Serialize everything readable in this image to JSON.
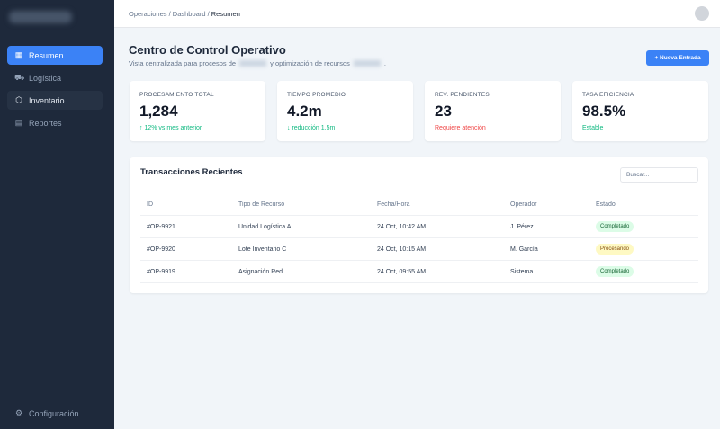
{
  "sidebar": {
    "items": [
      {
        "label": "Resumen",
        "icon": "grid-icon",
        "active": true
      },
      {
        "label": "Logística",
        "icon": "truck-icon"
      },
      {
        "label": "Inventario",
        "icon": "box-icon"
      },
      {
        "label": "Reportes",
        "icon": "file-icon"
      }
    ],
    "settings": {
      "label": "Configuración",
      "icon": "gear-icon"
    }
  },
  "header": {
    "breadcrumb": [
      "Operaciones",
      "Dashboard",
      "Resumen"
    ],
    "sep": " / "
  },
  "page": {
    "title": "Centro de Control Operativo",
    "subtitle_a": "Vista centralizada para procesos de",
    "subtitle_b": "y optimización de recursos",
    "subtitle_c": ".",
    "new_button": "+ Nueva Entrada"
  },
  "cards": [
    {
      "label": "PROCESAMIENTO TOTAL",
      "value": "1,284",
      "note": "↑ 12% vs mes anterior",
      "note_color": "#10b981"
    },
    {
      "label": "TIEMPO PROMEDIO",
      "value": "4.2m",
      "note": "↓ reducción 1.5m",
      "note_color": "#10b981"
    },
    {
      "label": "REV. PENDIENTES",
      "value": "23",
      "note": "Requiere atención",
      "note_color": "#ef4444"
    },
    {
      "label": "TASA EFICIENCIA",
      "value": "98.5%",
      "note": "Estable",
      "note_color": "#10b981"
    }
  ],
  "table": {
    "title": "Transacciones Recientes",
    "search_placeholder": "Buscar...",
    "columns": [
      "ID",
      "Tipo de Recurso",
      "Fecha/Hora",
      "Operador",
      "Estado"
    ],
    "rows": [
      [
        "#OP-9921",
        "Unidad Logística A",
        "24 Oct, 10:42 AM",
        "J. Pérez",
        "Completado"
      ],
      [
        "#OP-9920",
        "Lote Inventario C",
        "24 Oct, 10:15 AM",
        "M. García",
        "Procesando"
      ],
      [
        "#OP-9919",
        "Asignación Red",
        "24 Oct, 09:55 AM",
        "Sistema",
        "Completado"
      ]
    ]
  },
  "colors": {
    "accent": "#3b82f6",
    "sidebar": "#1e293b",
    "completed_bg": "#dcfce7",
    "completed_fg": "#166534",
    "processing_bg": "#fef9c3",
    "processing_fg": "#854d0e"
  }
}
